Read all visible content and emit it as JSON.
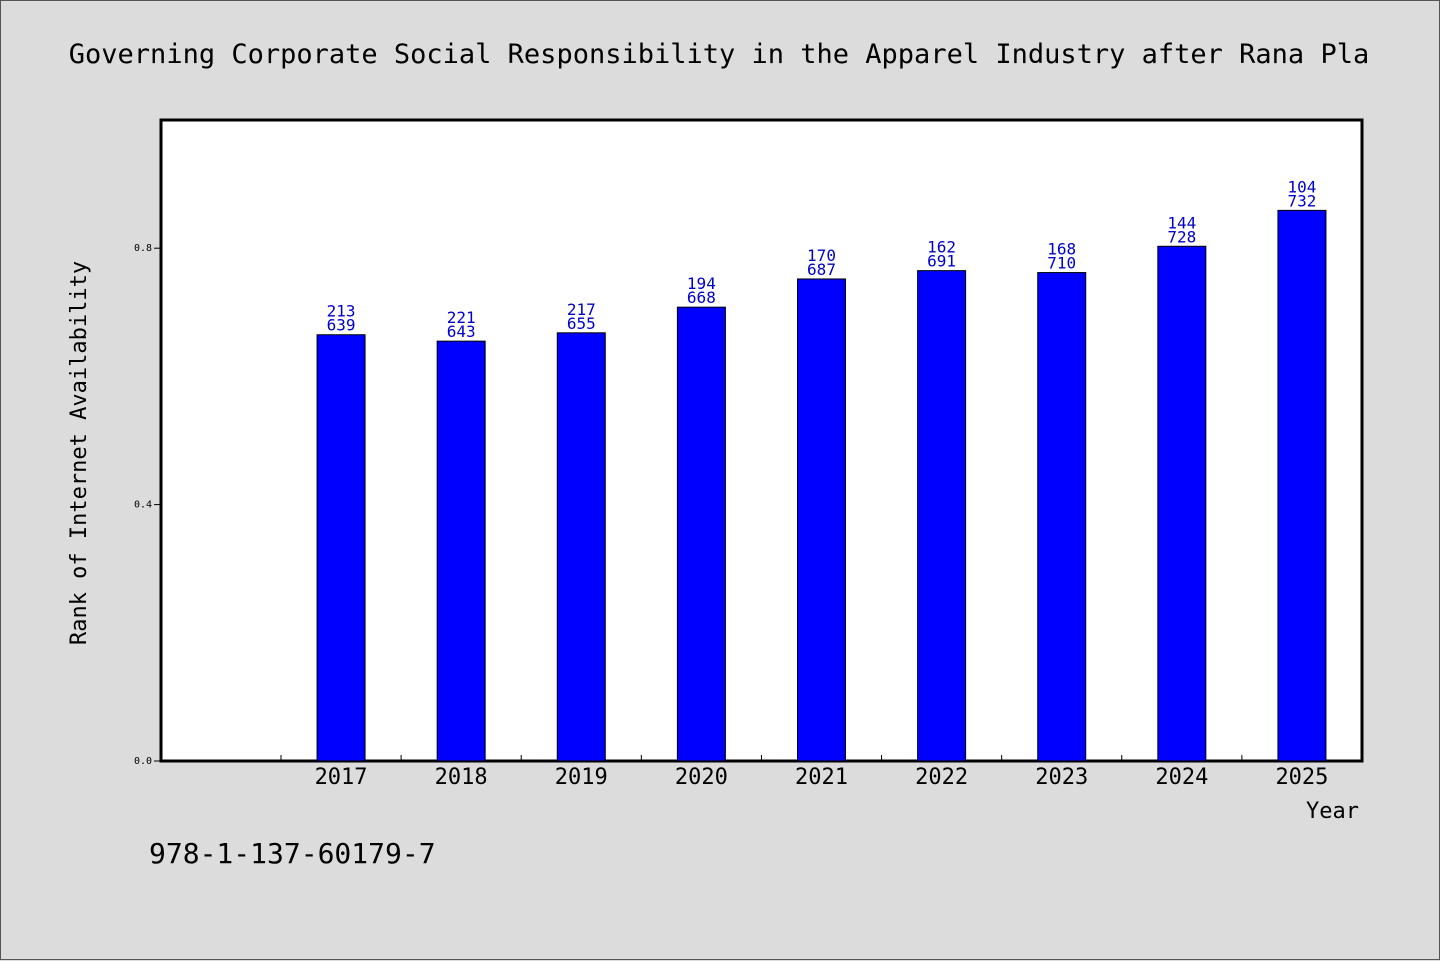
{
  "chart_data": {
    "type": "bar",
    "title": "Governing Corporate Social Responsibility in the Apparel Industry after Rana Pla",
    "xlabel": "Year",
    "ylabel": "Rank of Internet Availability",
    "categories": [
      "2017",
      "2018",
      "2019",
      "2020",
      "2021",
      "2022",
      "2023",
      "2024",
      "2025"
    ],
    "values": [
      0.665,
      0.655,
      0.668,
      0.708,
      0.752,
      0.765,
      0.762,
      0.803,
      0.859
    ],
    "data_labels": [
      [
        "213",
        "639"
      ],
      [
        "221",
        "643"
      ],
      [
        "217",
        "655"
      ],
      [
        "194",
        "668"
      ],
      [
        "170",
        "687"
      ],
      [
        "162",
        "691"
      ],
      [
        "168",
        "710"
      ],
      [
        "144",
        "728"
      ],
      [
        "104",
        "732"
      ]
    ],
    "yticks": [
      "0.0",
      "0.4",
      "0.8"
    ],
    "ytick_values": [
      0.0,
      0.4,
      0.8
    ],
    "ylim": [
      0,
      1.0
    ],
    "grid": false,
    "legend": "none",
    "bar_color": "#0000ff",
    "label_color": "#0000cc",
    "background_color": "#dcdcdc",
    "plot_background_color": "#ffffff"
  },
  "footer": {
    "isbn": "978-1-137-60179-7"
  }
}
